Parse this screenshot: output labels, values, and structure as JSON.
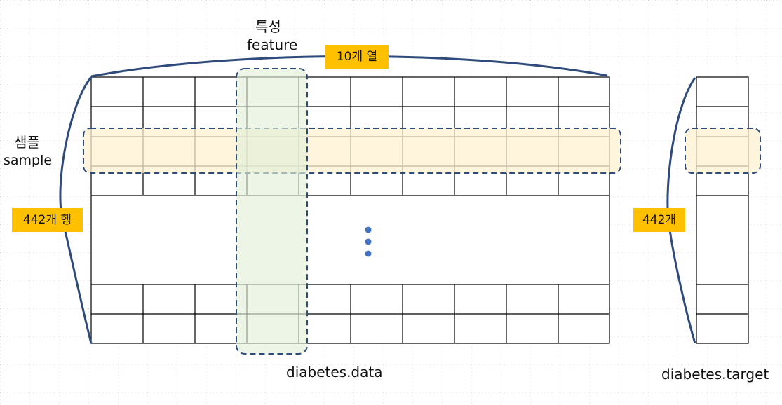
{
  "labels": {
    "feature_ko": "특성",
    "feature_en": "feature",
    "columns_badge": "10개 열",
    "sample_ko": "샘플",
    "sample_en": "sample",
    "rows_badge": "442개 행",
    "target_count_badge": "442개",
    "data_caption": "diabetes.data",
    "target_caption": "diabetes.target"
  },
  "colors": {
    "grid_line": "#000000",
    "highlight_border": "#2f4b7c",
    "brace": "#2f4b7c",
    "feature_fill": "#e2efd9",
    "sample_fill": "#fdf2d0",
    "badge": "#ffc000",
    "ellipsis_dot": "#4472c4",
    "background_dots": "#bbbbbb"
  }
}
